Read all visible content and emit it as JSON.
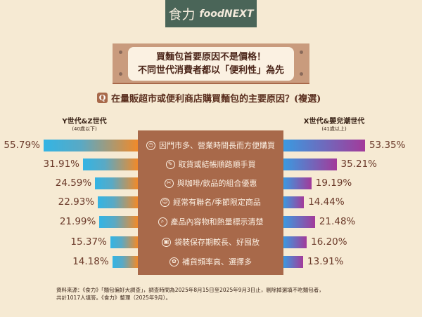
{
  "logo": {
    "zh": "食力",
    "en": "foodNEXT"
  },
  "banner": {
    "line1": "買麵包首要原因不是價格！",
    "line2": "不同世代消費者都以「便利性」為先"
  },
  "question": {
    "badge": "Q",
    "text": "在量販超市或便利商店購買麵包的主要原因？(複選)"
  },
  "chart_data": {
    "type": "bar",
    "title": "在量販超市或便利商店購買麵包的主要原因？(複選)",
    "categories": [
      "因門市多、營業時間長而方便購買",
      "取貨或結帳順路順手買",
      "與咖啡/飲品的組合優惠",
      "經常有聯名/季節限定商品",
      "產品內容物和熱量標示清楚",
      "袋裝保存期較長、好囤放",
      "補貨頻率高、選擇多"
    ],
    "icons": [
      "clock-check-icon",
      "hand-icon",
      "coupon-icon",
      "people-icon",
      "magnifier-check-icon",
      "package-clock-icon",
      "flower-icon"
    ],
    "series": [
      {
        "name": "Y世代&Z世代",
        "sub": "(40歲以下)",
        "values": [
          55.79,
          31.91,
          24.59,
          22.93,
          21.99,
          15.37,
          14.18
        ],
        "labels": [
          "55.79%",
          "31.91%",
          "24.59%",
          "22.93%",
          "21.99%",
          "15.37%",
          "14.18%"
        ],
        "colors": [
          "#33b4e4",
          "#f08a2a"
        ]
      },
      {
        "name": "X世代&嬰兒潮世代",
        "sub": "(41歲以上)",
        "values": [
          53.35,
          35.21,
          19.19,
          14.44,
          21.48,
          16.2,
          13.91
        ],
        "labels": [
          "53.35%",
          "35.21%",
          "19.19%",
          "14.44%",
          "21.48%",
          "16.20%",
          "13.91%"
        ],
        "colors": [
          "#3a9ae0",
          "#a33a9a"
        ]
      }
    ],
    "unit": "%"
  },
  "footer": {
    "line1": "資料來源：《食力》「麵包偏好大調查」，調查時間為2025年8月15日至2025年9月3日止，剔除掉選填不吃麵包者，",
    "line2": "共計1017人填答。《食力》整理（2025年9月）。"
  }
}
